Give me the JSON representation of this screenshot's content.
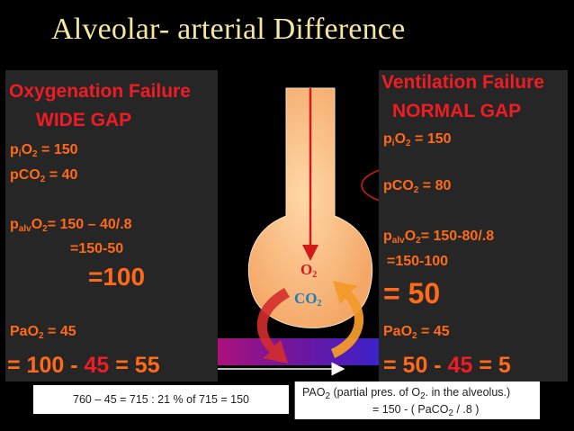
{
  "title": "Alveolar- arterial Difference",
  "left": {
    "heading": "Oxygenation Failure",
    "gap": "WIDE   GAP",
    "pio2_sym": "p",
    "pio2_sub": "i",
    "pio2_o": "O",
    "pio2_sub2": "2",
    "pio2_val": " = 150",
    "pco2_pre": "pCO",
    "pco2_sub": "2",
    "pco2_val": " = 40",
    "palv_pre": "p",
    "palv_sub": "alv",
    "palv_o": "O",
    "palv_sub2": "2",
    "palv_val": "= 150 – 40/.8",
    "step": "=150-50",
    "result": "=100",
    "pao2": "PaO",
    "pao2_sub": "2",
    "pao2_val": " = 45",
    "final_box": "",
    "final_a": " = 100 - ",
    "final_b": "45",
    "final_c": " = 55"
  },
  "right": {
    "heading": "Ventilation Failure",
    "gap": "NORMAL GAP",
    "pio2_sym": "p",
    "pio2_sub": "i",
    "pio2_o": "O",
    "pio2_sub2": "2",
    "pio2_val": " = 150",
    "pco2_pre": "pCO",
    "pco2_sub": "2",
    "pco2_val": " = 80",
    "palv_pre": "p",
    "palv_sub": "alv",
    "palv_o": "O",
    "palv_sub2": "2",
    "palv_val": "= 150-80/.8",
    "step": "=150-100",
    "result": "= 50",
    "pao2": "PaO",
    "pao2_sub": "2",
    "pao2_val": " = 45",
    "final_box": "",
    "final_a": " = 50 - ",
    "final_b": "45",
    "final_c": " = 5"
  },
  "diagram": {
    "o2": "O",
    "o2_sub": "2",
    "co2": "CO",
    "co2_sub": "2"
  },
  "notes": {
    "calc": "760 – 45 = 715  :  21 % of 715 = 150",
    "def_a": "PAO",
    "def_sub": "2",
    "def_b": " (partial pres. of O",
    "def_sub2": "2",
    "def_c": ". in the alveolus.)",
    "formula": "= 150 - ( PaCO",
    "formula_sub": "2",
    "formula_b": " / .8 )"
  },
  "colors": {
    "red": "#ee1c24",
    "orange": "#ff6a1a",
    "title": "#f5e6a0",
    "panel": "#262626",
    "flask": "#ffc58a",
    "o2_text": "#d21a1a",
    "co2_text": "#1a7fc0",
    "highlight_ring": "#f2f23a",
    "red_ring": "#e01818"
  }
}
